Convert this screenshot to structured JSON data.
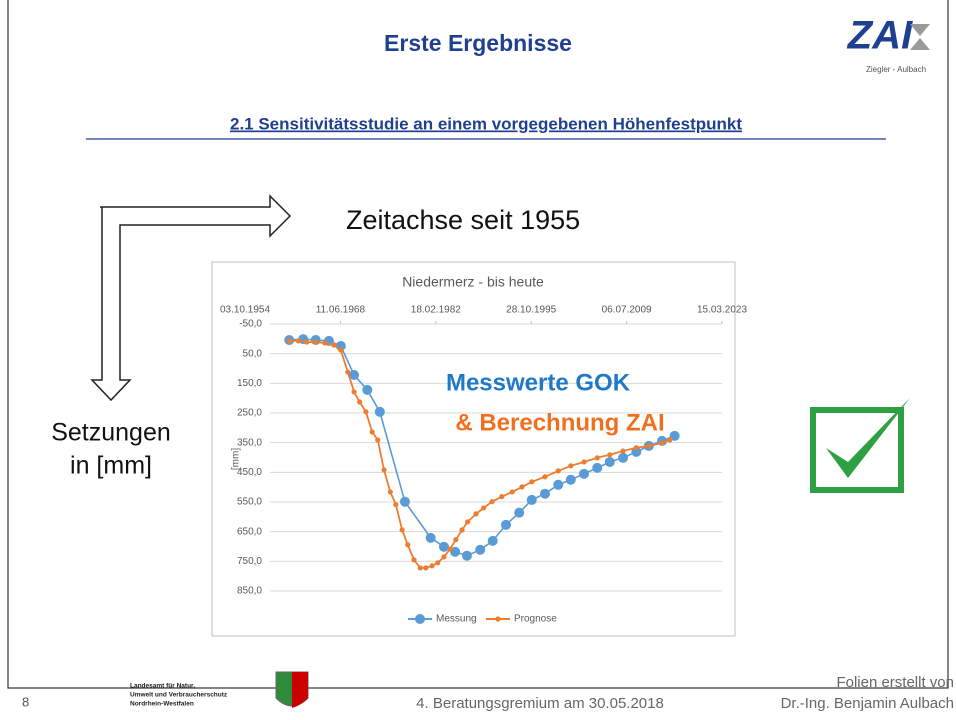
{
  "header": {
    "title": "Erste Ergebnisse",
    "logo_text": "ZAI",
    "logo_subtitle": "Ziegler - Aulbach",
    "subtitle": "2.1 Sensitivitätsstudie an einem vorgegebenen Höhenfestpunkt"
  },
  "annotations": {
    "time_axis": "Zeitachse seit 1955",
    "settlement_line1": "Setzungen",
    "settlement_line2": "in [mm]",
    "overlay_line1": "Messwerte GOK",
    "overlay_line2": "& Berechnung ZAI"
  },
  "chart_data": {
    "type": "line",
    "title": "Niedermerz - bis heute",
    "y_label": "[mm]",
    "xlim": [
      1954.75,
      2023.2
    ],
    "xticks": [
      {
        "value": 1954.75,
        "label": "03.10.1954"
      },
      {
        "value": 1968.44,
        "label": "11.06.1968"
      },
      {
        "value": 1982.13,
        "label": "18.02.1982"
      },
      {
        "value": 1995.82,
        "label": "28.10.1995"
      },
      {
        "value": 2009.51,
        "label": "06.07.2009"
      },
      {
        "value": 2023.2,
        "label": "15.03.2023"
      }
    ],
    "ylim": [
      -50,
      850
    ],
    "y_inverted": true,
    "yticks": [
      {
        "value": -50,
        "label": "-50,0"
      },
      {
        "value": 50,
        "label": "50,0"
      },
      {
        "value": 150,
        "label": "150,0"
      },
      {
        "value": 250,
        "label": "250,0"
      },
      {
        "value": 350,
        "label": "350,0"
      },
      {
        "value": 450,
        "label": "450,0"
      },
      {
        "value": 550,
        "label": "550,0"
      },
      {
        "value": 650,
        "label": "650,0"
      },
      {
        "value": 750,
        "label": "750,0"
      },
      {
        "value": 850,
        "label": "850,0"
      }
    ],
    "grid": true,
    "legend": "bottom",
    "series": [
      {
        "name": "Messung",
        "color": "#5b9bd5",
        "x": [
          1961.1,
          1963.1,
          1964.9,
          1966.8,
          1968.5,
          1970.4,
          1972.3,
          1974.1,
          1977.7,
          1981.4,
          1983.3,
          1984.9,
          1986.6,
          1988.5,
          1990.3,
          1992.2,
          1994.1,
          1995.9,
          1997.8,
          1999.7,
          2001.5,
          2003.4,
          2005.3,
          2007.1,
          2009.0,
          2010.9,
          2012.7,
          2014.6,
          2016.4
        ],
        "values": [
          4,
          1,
          4,
          7,
          24,
          122,
          172,
          246,
          549,
          671,
          701,
          718,
          731,
          711,
          681,
          627,
          586,
          543,
          522,
          492,
          475,
          455,
          435,
          415,
          401,
          381,
          361,
          344,
          327
        ]
      },
      {
        "name": "Prognose",
        "color": "#ed7d31",
        "x": [
          1961.1,
          1962.4,
          1963.6,
          1964.9,
          1966.2,
          1967.5,
          1968.5,
          1969.5,
          1970.4,
          1971.2,
          1972.1,
          1973.0,
          1973.8,
          1974.7,
          1975.6,
          1976.4,
          1977.3,
          1978.1,
          1979.0,
          1979.9,
          1980.7,
          1981.6,
          1982.4,
          1983.3,
          1984.2,
          1985.0,
          1985.9,
          1986.7,
          1987.9,
          1989.0,
          1990.2,
          1991.6,
          1993.1,
          1994.5,
          1995.9,
          1997.8,
          1999.7,
          2001.5,
          2003.4,
          2005.3,
          2007.1,
          2009.0,
          2010.9,
          2012.7,
          2014.6,
          2015.7
        ],
        "values": [
          7,
          7,
          11,
          11,
          14,
          21,
          38,
          112,
          179,
          213,
          246,
          314,
          341,
          442,
          516,
          559,
          644,
          694,
          745,
          772,
          772,
          765,
          755,
          735,
          708,
          677,
          644,
          617,
          590,
          570,
          549,
          532,
          516,
          499,
          482,
          465,
          445,
          428,
          415,
          401,
          391,
          378,
          367,
          361,
          351,
          341
        ]
      }
    ]
  },
  "footer": {
    "page": "8",
    "agency": [
      "Landesamt für Natur,",
      "Umwelt und Verbraucherschutz",
      "Nordrhein-Westfalen"
    ],
    "meeting": "4. Beratungsgremium am 30.05.2018",
    "credit_line1": "Folien erstellt von",
    "credit_line2": "Dr.-Ing. Benjamin Aulbach"
  }
}
